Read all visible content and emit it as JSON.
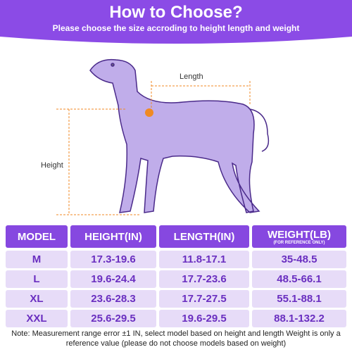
{
  "header": {
    "title": "How to Choose?",
    "subtitle": "Please choose the size accroding to height length and weight"
  },
  "diagram": {
    "length_label": "Length",
    "height_label": "Height"
  },
  "table": {
    "columns": [
      "MODEL",
      "HEIGHT(IN)",
      "LENGTH(IN)",
      "WEIGHT(LB)"
    ],
    "weight_note": "(FOR REFERENCE ONLY)",
    "rows": [
      [
        "M",
        "17.3-19.6",
        "11.8-17.1",
        "35-48.5"
      ],
      [
        "L",
        "19.6-24.4",
        "17.7-23.6",
        "48.5-66.1"
      ],
      [
        "XL",
        "23.6-28.3",
        "17.7-27.5",
        "55.1-88.1"
      ],
      [
        "XXL",
        "25.6-29.5",
        "19.6-29.5",
        "88.1-132.2"
      ]
    ]
  },
  "note": "Note: Measurement range error ±1 IN, select model based on height and length Weight is only a reference value (please do not choose models based on weight)"
}
